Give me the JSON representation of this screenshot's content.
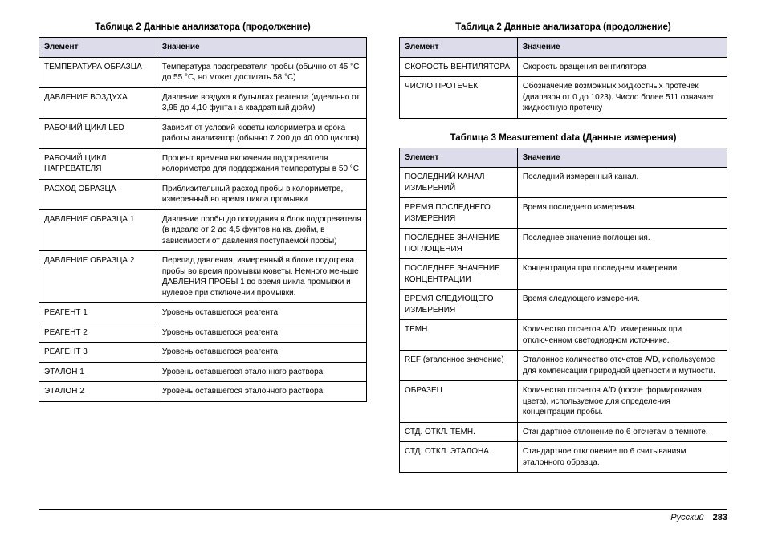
{
  "colors": {
    "header_bg": "#dcdceb",
    "border": "#000000",
    "text": "#000000",
    "page_bg": "#ffffff"
  },
  "typography": {
    "title_fontsize_pt": 9,
    "cell_fontsize_pt": 7.5,
    "footer_fontsize_pt": 8.5
  },
  "left": {
    "table2": {
      "title": "Таблица 2  Данные анализатора (продолжение)",
      "columns": [
        "Элемент",
        "Значение"
      ],
      "rows": [
        [
          "ТЕМПЕРАТУРА ОБРАЗЦА",
          "Температура подогревателя пробы (обычно от 45 °C до 55 °C, но может достигать 58 °C)"
        ],
        [
          "ДАВЛЕНИЕ ВОЗДУХА",
          "Давление воздуха в бутылках реагента (идеально от 3,95 до 4,10 фунта на квадратный дюйм)"
        ],
        [
          "РАБОЧИЙ ЦИКЛ LED",
          "Зависит от условий кюветы колориметра и срока работы анализатор (обычно 7 200 до 40 000 циклов)"
        ],
        [
          "РАБОЧИЙ ЦИКЛ НАГРЕВАТЕЛЯ",
          "Процент времени включения подогревателя колориметра для поддержания температуры в 50 °C"
        ],
        [
          "РАСХОД ОБРАЗЦА",
          "Приблизительный расход пробы в колориметре, измеренный во время цикла промывки"
        ],
        [
          "ДАВЛЕНИЕ ОБРАЗЦА 1",
          "Давление пробы до попадания в блок подогревателя (в идеале от 2 до 4,5 фунтов на кв. дюйм, в зависимости от давления поступаемой пробы)"
        ],
        [
          "ДАВЛЕНИЕ ОБРАЗЦА 2",
          "Перепад давления, измеренный в блоке подогрева пробы во время промывки кюветы. Немного меньше ДАВЛЕНИЯ ПРОБЫ 1 во время цикла промывки и нулевое при отключении промывки."
        ],
        [
          "РЕАГЕНТ 1",
          "Уровень оставшегося реагента"
        ],
        [
          "РЕАГЕНТ 2",
          "Уровень оставшегося реагента"
        ],
        [
          "РЕАГЕНТ 3",
          "Уровень оставшегося реагента"
        ],
        [
          "ЭТАЛОН 1",
          "Уровень оставшегося эталонного раствора"
        ],
        [
          "ЭТАЛОН 2",
          "Уровень оставшегося эталонного раствора"
        ]
      ]
    }
  },
  "right": {
    "table2": {
      "title": "Таблица 2  Данные анализатора (продолжение)",
      "columns": [
        "Элемент",
        "Значение"
      ],
      "rows": [
        [
          "СКОРОСТЬ ВЕНТИЛЯТОРА",
          "Скорость вращения вентилятора"
        ],
        [
          "ЧИСЛО ПРОТЕЧЕК",
          "Обозначение возможных жидкостных протечек (диапазон от 0 до 1023). Число более 511 означает жидкостную протечку"
        ]
      ]
    },
    "table3": {
      "title": "Таблица 3  Measurement data (Данные измерения)",
      "columns": [
        "Элемент",
        "Значение"
      ],
      "rows": [
        [
          "ПОСЛЕДНИЙ КАНАЛ ИЗМЕРЕНИЙ",
          "Последний измеренный канал."
        ],
        [
          "ВРЕМЯ ПОСЛЕДНЕГО ИЗМЕРЕНИЯ",
          "Время последнего измерения."
        ],
        [
          "ПОСЛЕДНЕЕ ЗНАЧЕНИЕ ПОГЛОЩЕНИЯ",
          "Последнее значение поглощения."
        ],
        [
          "ПОСЛЕДНЕЕ ЗНАЧЕНИЕ КОНЦЕНТРАЦИИ",
          "Концентрация при последнем измерении."
        ],
        [
          "ВРЕМЯ СЛЕДУЮЩЕГО ИЗМЕРЕНИЯ",
          "Время следующего измерения."
        ],
        [
          "ТЕМН.",
          "Количество отсчетов A/D, измеренных при отключенном светодиодном источнике."
        ],
        [
          "REF (эталонное значение)",
          "Эталонное количество отсчетов A/D, используемое для компенсации природной цветности и мутности."
        ],
        [
          "ОБРАЗЕЦ",
          "Количество отсчетов A/D (после формирования цвета), используемое для определения концентрации пробы."
        ],
        [
          "СТД. ОТКЛ. ТЕМН.",
          "Стандартное отлонение по 6 отсчетам в темноте."
        ],
        [
          "СТД. ОТКЛ. ЭТАЛОНА",
          "Стандартное отклонение по 6 считываниям эталонного образца."
        ]
      ]
    }
  },
  "footer": {
    "language": "Русский",
    "page_number": "283"
  }
}
